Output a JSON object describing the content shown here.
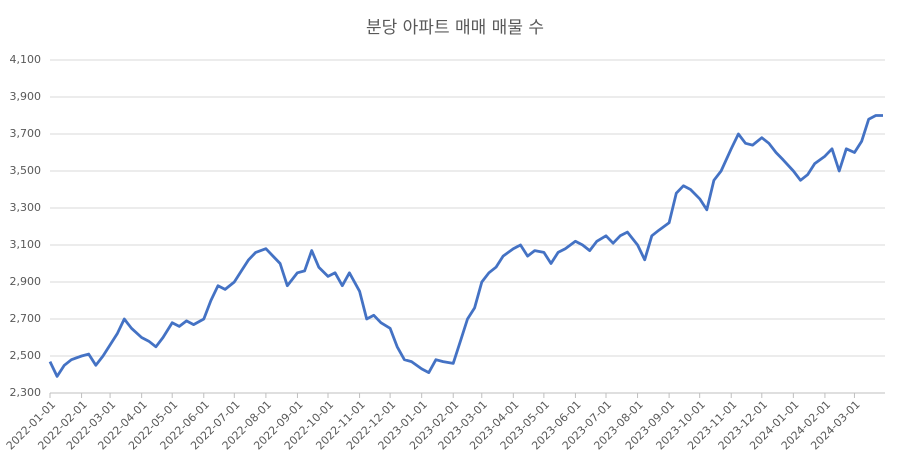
{
  "chart_data": {
    "type": "line",
    "title": "분당 아파트 매매 매물 수",
    "x": [
      "2022-01-01",
      "2022-01-08",
      "2022-01-15",
      "2022-01-22",
      "2022-02-01",
      "2022-02-08",
      "2022-02-15",
      "2022-02-22",
      "2022-03-01",
      "2022-03-08",
      "2022-03-15",
      "2022-03-22",
      "2022-04-01",
      "2022-04-08",
      "2022-04-15",
      "2022-04-22",
      "2022-05-01",
      "2022-05-08",
      "2022-05-15",
      "2022-05-22",
      "2022-06-01",
      "2022-06-08",
      "2022-06-15",
      "2022-06-22",
      "2022-07-01",
      "2022-07-08",
      "2022-07-15",
      "2022-07-22",
      "2022-08-01",
      "2022-08-08",
      "2022-08-15",
      "2022-08-22",
      "2022-09-01",
      "2022-09-08",
      "2022-09-15",
      "2022-09-22",
      "2022-10-01",
      "2022-10-08",
      "2022-10-15",
      "2022-10-22",
      "2022-11-01",
      "2022-11-08",
      "2022-11-15",
      "2022-11-22",
      "2022-12-01",
      "2022-12-08",
      "2022-12-15",
      "2022-12-22",
      "2023-01-01",
      "2023-01-08",
      "2023-01-15",
      "2023-01-22",
      "2023-02-01",
      "2023-02-08",
      "2023-02-15",
      "2023-02-22",
      "2023-03-01",
      "2023-03-08",
      "2023-03-15",
      "2023-03-22",
      "2023-04-01",
      "2023-04-08",
      "2023-04-15",
      "2023-04-22",
      "2023-05-01",
      "2023-05-08",
      "2023-05-15",
      "2023-05-22",
      "2023-06-01",
      "2023-06-08",
      "2023-06-15",
      "2023-06-22",
      "2023-07-01",
      "2023-07-08",
      "2023-07-15",
      "2023-07-22",
      "2023-08-01",
      "2023-08-08",
      "2023-08-15",
      "2023-08-22",
      "2023-09-01",
      "2023-09-08",
      "2023-09-15",
      "2023-09-22",
      "2023-10-01",
      "2023-10-08",
      "2023-10-15",
      "2023-10-22",
      "2023-11-01",
      "2023-11-08",
      "2023-11-15",
      "2023-11-22",
      "2023-12-01",
      "2023-12-08",
      "2023-12-15",
      "2023-12-22",
      "2024-01-01",
      "2024-01-08",
      "2024-01-15",
      "2024-01-22",
      "2024-02-01",
      "2024-02-08",
      "2024-02-15",
      "2024-02-22",
      "2024-03-01",
      "2024-03-08",
      "2024-03-15",
      "2024-03-22",
      "2024-03-29"
    ],
    "series": [
      {
        "name": "매물 수",
        "color": "#4472c4",
        "values": [
          2470,
          2390,
          2450,
          2480,
          2500,
          2510,
          2450,
          2500,
          2560,
          2620,
          2700,
          2650,
          2600,
          2580,
          2550,
          2600,
          2680,
          2660,
          2690,
          2670,
          2700,
          2800,
          2880,
          2860,
          2900,
          2960,
          3020,
          3060,
          3080,
          3040,
          3000,
          2880,
          2950,
          2960,
          3070,
          2980,
          2930,
          2950,
          2880,
          2950,
          2850,
          2700,
          2720,
          2680,
          2650,
          2550,
          2480,
          2470,
          2430,
          2410,
          2480,
          2470,
          2460,
          2580,
          2700,
          2760,
          2900,
          2950,
          2980,
          3040,
          3080,
          3100,
          3040,
          3070,
          3060,
          3000,
          3060,
          3080,
          3120,
          3100,
          3070,
          3120,
          3150,
          3110,
          3150,
          3170,
          3100,
          3020,
          3150,
          3180,
          3220,
          3380,
          3420,
          3400,
          3350,
          3290,
          3450,
          3500,
          3620,
          3700,
          3650,
          3640,
          3680,
          3650,
          3600,
          3560,
          3500,
          3450,
          3480,
          3540,
          3580,
          3620,
          3500,
          3620,
          3600,
          3660,
          3780,
          3800,
          3800
        ]
      }
    ],
    "xlim": [
      "2022-01-01",
      "2024-03-31"
    ],
    "xticks": [
      "2022-01-01",
      "2022-02-01",
      "2022-03-01",
      "2022-04-01",
      "2022-05-01",
      "2022-06-01",
      "2022-07-01",
      "2022-08-01",
      "2022-09-01",
      "2022-10-01",
      "2022-11-01",
      "2022-12-01",
      "2023-01-01",
      "2023-02-01",
      "2023-03-01",
      "2023-04-01",
      "2023-05-01",
      "2023-06-01",
      "2023-07-01",
      "2023-08-01",
      "2023-09-01",
      "2023-10-01",
      "2023-11-01",
      "2023-12-01",
      "2024-01-01",
      "2024-02-01",
      "2024-03-01"
    ],
    "ylim": [
      2300,
      4100
    ],
    "yticks": [
      {
        "value": 2300,
        "label": "2,300"
      },
      {
        "value": 2500,
        "label": "2,500"
      },
      {
        "value": 2700,
        "label": "2,700"
      },
      {
        "value": 2900,
        "label": "2,900"
      },
      {
        "value": 3100,
        "label": "3,100"
      },
      {
        "value": 3300,
        "label": "3,300"
      },
      {
        "value": 3500,
        "label": "3,500"
      },
      {
        "value": 3700,
        "label": "3,700"
      },
      {
        "value": 3900,
        "label": "3,900"
      },
      {
        "value": 4100,
        "label": "4,100"
      }
    ],
    "grid": true
  }
}
